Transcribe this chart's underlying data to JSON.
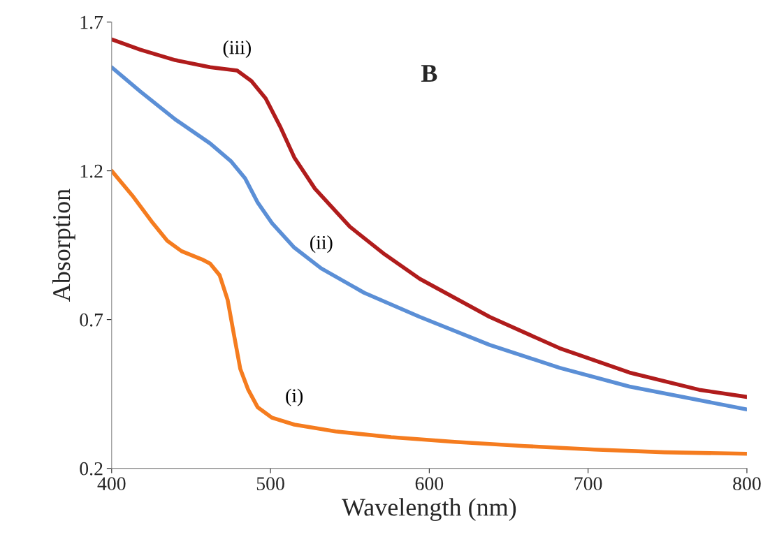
{
  "chart_data": {
    "type": "line",
    "xlabel": "Wavelength (nm)",
    "ylabel": "Absorption",
    "xlim": [
      400,
      800
    ],
    "xticks": [
      400,
      500,
      600,
      700,
      800
    ],
    "ylim": [
      0.2,
      1.7
    ],
    "yticks": [
      {
        "value": 0.2,
        "label": "0.2"
      },
      {
        "value": 0.7,
        "label": "0.7"
      },
      {
        "value": 1.2,
        "label": "1.2"
      },
      {
        "value": 1.7,
        "label": "1.7"
      }
    ],
    "grid": false,
    "legend": false,
    "marker": "none",
    "line_style": "solid",
    "series": [
      {
        "name": "(i)",
        "color": "#f57c1f",
        "x": [
          400,
          413,
          426,
          435,
          444,
          457,
          462,
          468,
          473,
          477,
          481,
          486,
          492,
          501,
          515,
          541,
          576,
          616,
          660,
          704,
          748,
          800
        ],
        "values": [
          1.2,
          1.117,
          1.024,
          0.965,
          0.93,
          0.902,
          0.888,
          0.849,
          0.767,
          0.65,
          0.534,
          0.464,
          0.405,
          0.37,
          0.347,
          0.324,
          0.305,
          0.289,
          0.275,
          0.263,
          0.254,
          0.249
        ]
      },
      {
        "name": "(ii)",
        "color": "#5b8fd6",
        "x": [
          400,
          418,
          440,
          462,
          475,
          484,
          492,
          501,
          515,
          532,
          559,
          594,
          638,
          682,
          726,
          770,
          800
        ],
        "values": [
          1.548,
          1.467,
          1.373,
          1.292,
          1.233,
          1.175,
          1.093,
          1.024,
          0.942,
          0.872,
          0.79,
          0.709,
          0.615,
          0.538,
          0.475,
          0.429,
          0.398
        ]
      },
      {
        "name": "(iii)",
        "color": "#b01c1c",
        "x": [
          400,
          418,
          440,
          462,
          479,
          488,
          497,
          506,
          515,
          528,
          550,
          572,
          594,
          638,
          682,
          726,
          770,
          800
        ],
        "values": [
          1.642,
          1.607,
          1.572,
          1.548,
          1.537,
          1.502,
          1.443,
          1.35,
          1.245,
          1.14,
          1.012,
          0.919,
          0.837,
          0.709,
          0.604,
          0.522,
          0.464,
          0.44
        ]
      }
    ],
    "annotations": [
      "B"
    ]
  }
}
